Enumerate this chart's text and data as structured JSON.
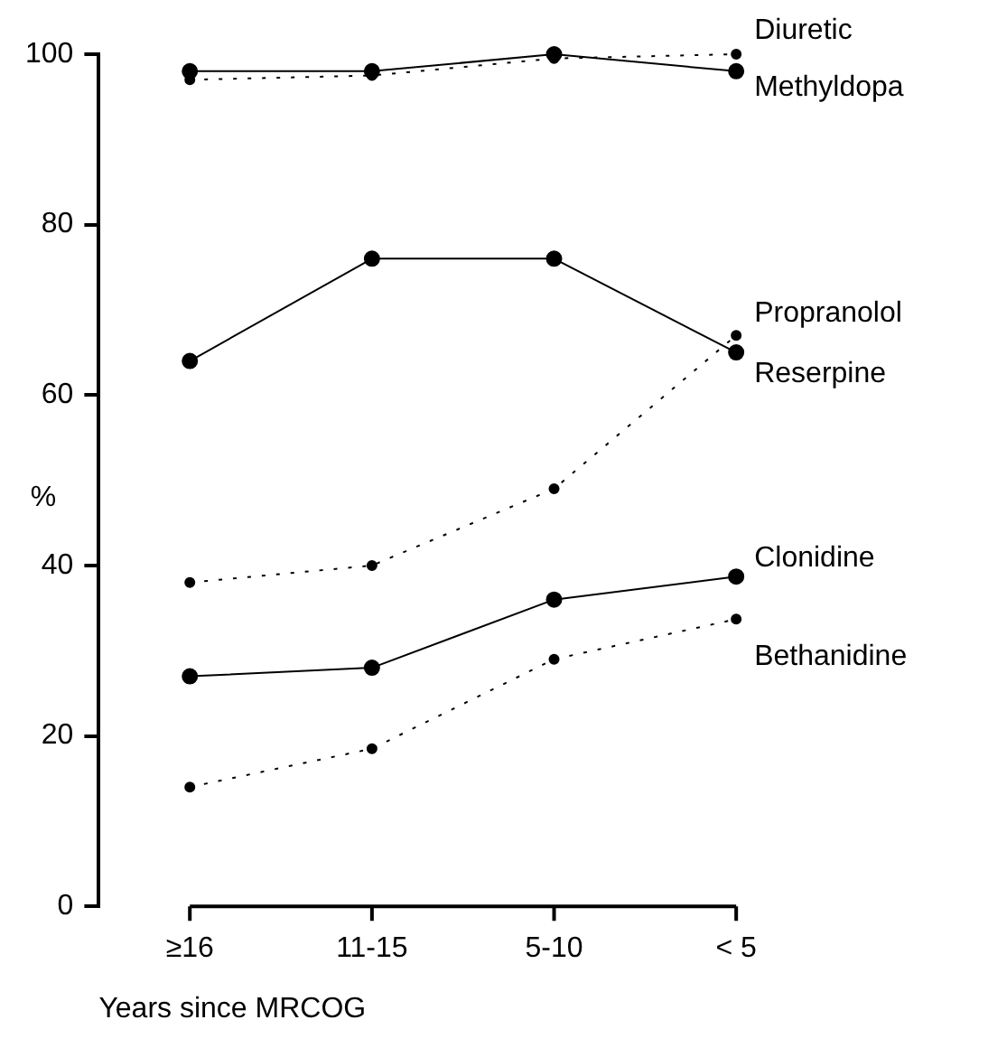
{
  "chart_data": {
    "type": "line",
    "xlabel": "Years since MRCOG",
    "ylabel": "%",
    "categories": [
      "≥16",
      "11-15",
      "5-10",
      "< 5"
    ],
    "ylim": [
      0,
      100
    ],
    "yticks": [
      0,
      20,
      40,
      60,
      80,
      100
    ],
    "grid": false,
    "legend": false,
    "marker": "circle",
    "series": [
      {
        "name": "Diuretic",
        "color": "#000000",
        "line_style": "dotted",
        "values": [
          97,
          97.5,
          99.5,
          100
        ]
      },
      {
        "name": "Methyldopa",
        "color": "#000000",
        "line_style": "solid",
        "values": [
          98,
          98,
          100,
          98
        ]
      },
      {
        "name": "Reserpine",
        "color": "#000000",
        "line_style": "solid",
        "values": [
          64,
          76,
          76,
          65
        ]
      },
      {
        "name": "Propranolol",
        "color": "#000000",
        "line_style": "dotted",
        "values": [
          38,
          40,
          49,
          67
        ]
      },
      {
        "name": "Clonidine",
        "color": "#000000",
        "line_style": "solid",
        "values": [
          27,
          28,
          36,
          38.7
        ]
      },
      {
        "name": "Bethanidine",
        "color": "#000000",
        "line_style": "dotted",
        "values": [
          14,
          18.5,
          29,
          33.7
        ]
      }
    ]
  }
}
